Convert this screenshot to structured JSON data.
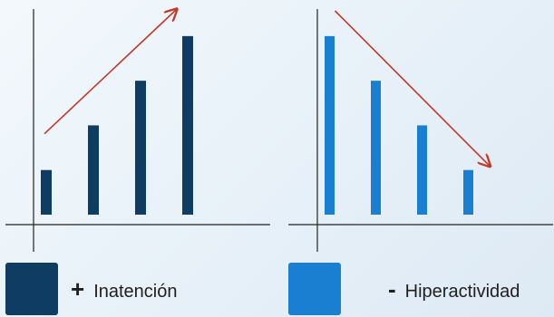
{
  "chart_data": [
    {
      "type": "bar",
      "categories": [
        "",
        "",
        "",
        ""
      ],
      "values": [
        1,
        2,
        3,
        4
      ],
      "title": "",
      "xlabel": "",
      "ylabel": "",
      "ylim": [
        0,
        4.2
      ],
      "color": "#0e3c62",
      "trend": "up",
      "trend_color": "#c0392b"
    },
    {
      "type": "bar",
      "categories": [
        "",
        "",
        "",
        ""
      ],
      "values": [
        4,
        3,
        2,
        1
      ],
      "title": "",
      "xlabel": "",
      "ylabel": "",
      "ylim": [
        0,
        4.2
      ],
      "color": "#1a7fd1",
      "trend": "down",
      "trend_color": "#c0392b"
    }
  ],
  "legend": [
    {
      "sign": "+",
      "label": "Inatención",
      "color": "#0e3c62"
    },
    {
      "sign": "-",
      "label": "Hiperactividad",
      "color": "#1a7fd1"
    }
  ]
}
